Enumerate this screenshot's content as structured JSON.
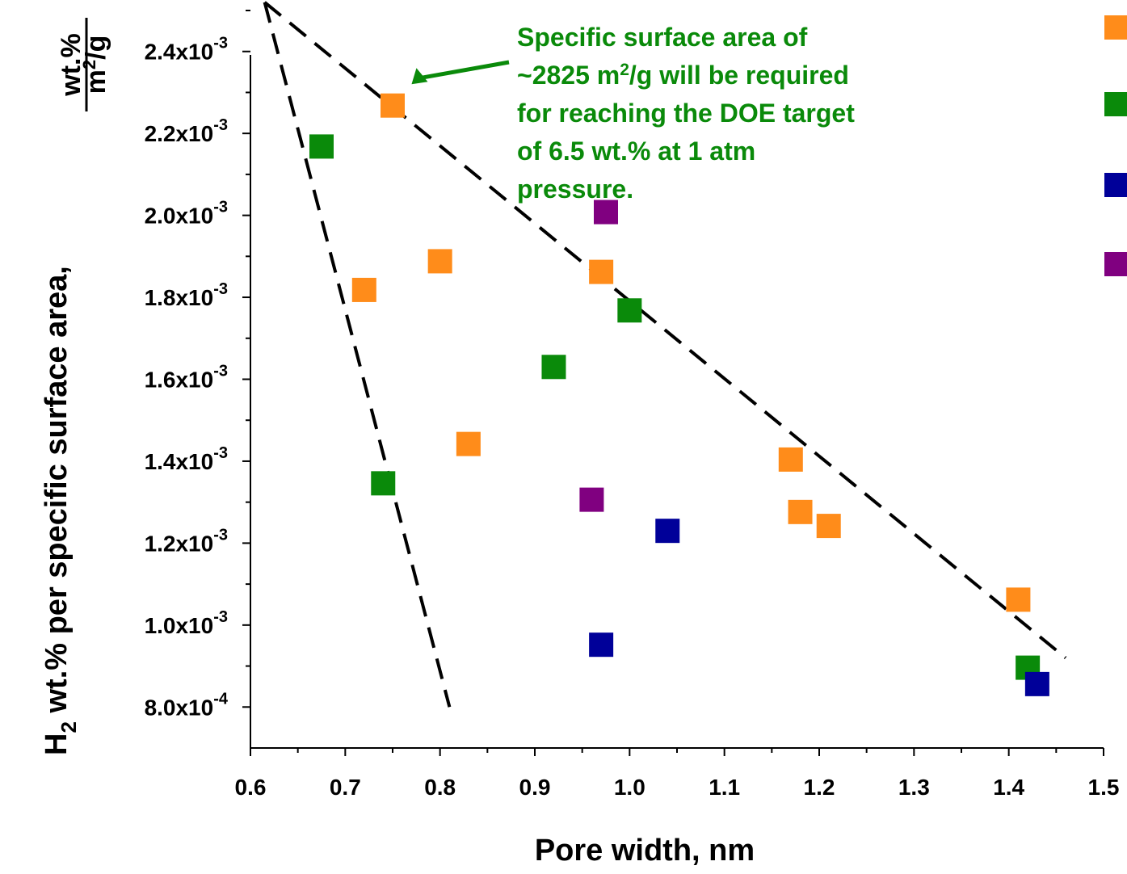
{
  "chart_data": {
    "type": "scatter",
    "xlabel": "Pore width, nm",
    "ylabel": {
      "prefix": "H",
      "prefix_sub": "2",
      "main": " wt.% per specific surface area,",
      "unit_numerator": "wt.%",
      "unit_denominator_base": "m",
      "unit_denominator_sup": "2",
      "unit_denominator_rest": "/g"
    },
    "xlim": [
      0.6,
      1.5
    ],
    "ylim": [
      0.0007,
      0.0025
    ],
    "x_ticks": [
      "0.6",
      "0.7",
      "0.8",
      "0.9",
      "1.0",
      "1.1",
      "1.2",
      "1.3",
      "1.4",
      "1.5"
    ],
    "y_ticks": [
      {
        "value": 0.0008,
        "mantissa": "8.0x10",
        "exp": "-4"
      },
      {
        "value": 0.001,
        "mantissa": "1.0x10",
        "exp": "-3"
      },
      {
        "value": 0.0012,
        "mantissa": "1.2x10",
        "exp": "-3"
      },
      {
        "value": 0.0014,
        "mantissa": "1.4x10",
        "exp": "-3"
      },
      {
        "value": 0.0016,
        "mantissa": "1.6x10",
        "exp": "-3"
      },
      {
        "value": 0.0018,
        "mantissa": "1.8x10",
        "exp": "-3"
      },
      {
        "value": 0.002,
        "mantissa": "2.0x10",
        "exp": "-3"
      },
      {
        "value": 0.0022,
        "mantissa": "2.2x10",
        "exp": "-3"
      },
      {
        "value": 0.0024,
        "mantissa": "2.4x10",
        "exp": "-3"
      }
    ],
    "series": [
      {
        "color": "#ff8c1a",
        "points": [
          [
            0.75,
            0.002268
          ],
          [
            0.72,
            0.001818
          ],
          [
            0.8,
            0.001888
          ],
          [
            0.97,
            0.001862
          ],
          [
            0.83,
            0.001442
          ],
          [
            1.17,
            0.001404
          ],
          [
            1.18,
            0.001276
          ],
          [
            1.21,
            0.001242
          ],
          [
            1.41,
            0.001062
          ]
        ]
      },
      {
        "color": "#0a8a0a",
        "points": [
          [
            0.675,
            0.002168
          ],
          [
            0.74,
            0.001346
          ],
          [
            0.92,
            0.00163
          ],
          [
            1.0,
            0.001768
          ],
          [
            1.42,
            0.000896
          ]
        ]
      },
      {
        "color": "#000099",
        "points": [
          [
            0.97,
            0.000952
          ],
          [
            1.04,
            0.00123
          ],
          [
            1.43,
            0.000856
          ]
        ]
      },
      {
        "color": "#800080",
        "points": [
          [
            0.975,
            0.002008
          ],
          [
            0.96,
            0.001306
          ]
        ]
      }
    ],
    "trend_lines": [
      {
        "from": [
          0.615,
          0.00252
        ],
        "to": [
          0.81,
          0.0008
        ]
      },
      {
        "from": [
          0.615,
          0.00252
        ],
        "to": [
          1.46,
          0.00092
        ]
      }
    ],
    "annotation": {
      "lines": [
        {
          "before": "Specific surface area of",
          "sup": "",
          "after": ""
        },
        {
          "before": "~2825 m",
          "sup": "2",
          "after": "/g will be required"
        },
        {
          "before": "for reaching the DOE target",
          "sup": "",
          "after": ""
        },
        {
          "before": "of 6.5 wt.% at 1 atm",
          "sup": "",
          "after": ""
        },
        {
          "before": "pressure.",
          "sup": "",
          "after": ""
        }
      ],
      "color": "#0a8a0a",
      "points_to": [
        0.77,
        0.00232
      ]
    },
    "legend": {
      "placement": "right",
      "entries": [
        {
          "color": "#ff8c1a"
        },
        {
          "color": "#0a8a0a"
        },
        {
          "color": "#000099"
        },
        {
          "color": "#800080"
        }
      ]
    }
  }
}
